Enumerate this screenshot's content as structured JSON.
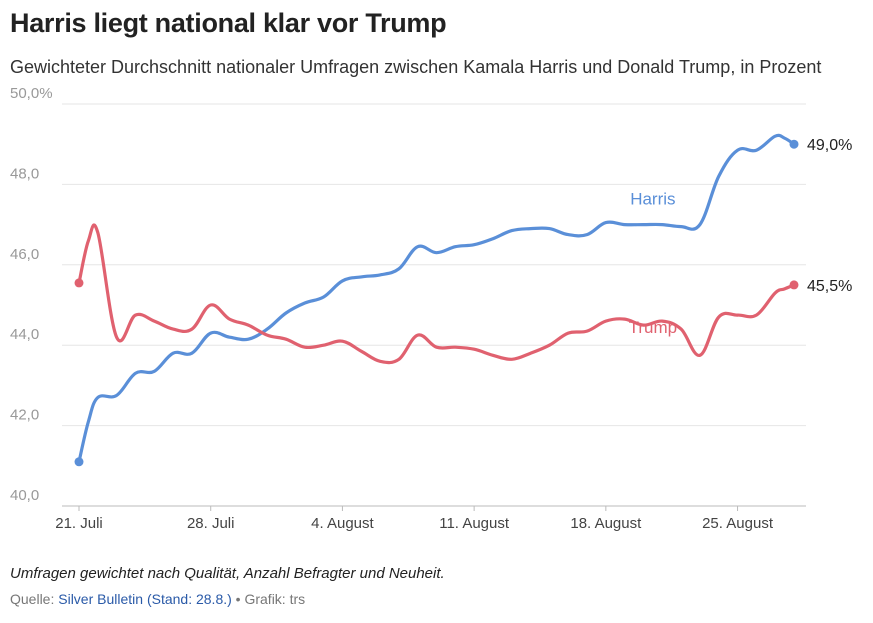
{
  "title": "Harris liegt national klar vor Trump",
  "subtitle": "Gewichteter Durchschnitt nationaler Umfragen zwischen Kamala Harris und Donald Trump, in Prozent",
  "note": "Umfragen gewichtet nach Qualität, Anzahl Befragter und Neuheit.",
  "source": {
    "prefix": "Quelle: ",
    "link_text": "Silver Bulletin (Stand: 28.8.)",
    "suffix": " • Grafik: trs"
  },
  "colors": {
    "harris": "#5a8fd8",
    "trump": "#e0616f",
    "grid": "#e6e6e6",
    "axis_text": "#999999"
  },
  "chart_data": {
    "type": "line",
    "title": "Harris liegt national klar vor Trump",
    "ylim": [
      40,
      50
    ],
    "yticks": [
      40,
      42,
      44,
      46,
      48,
      50
    ],
    "ytick_labels": [
      "40,0",
      "42,0",
      "44,0",
      "46,0",
      "48,0",
      "50,0%"
    ],
    "x_start_day": 0,
    "x_end_day": 38,
    "xticks": [
      {
        "day": 0,
        "label": "21. Juli"
      },
      {
        "day": 7,
        "label": "28. Juli"
      },
      {
        "day": 14,
        "label": "4. August"
      },
      {
        "day": 21,
        "label": "11. August"
      },
      {
        "day": 28,
        "label": "18. August"
      },
      {
        "day": 35,
        "label": "25. August"
      }
    ],
    "x_days": [
      0,
      0.5,
      1,
      2,
      3,
      4,
      5,
      6,
      7,
      8,
      9,
      10,
      11,
      12,
      13,
      14,
      15,
      16,
      17,
      18,
      19,
      20,
      21,
      22,
      23,
      24,
      25,
      26,
      27,
      28,
      29,
      30,
      31,
      32,
      33,
      34,
      35,
      36,
      37,
      37.5,
      38
    ],
    "series": [
      {
        "name": "Harris",
        "label": "Harris",
        "end_label": "49,0%",
        "values": [
          41.1,
          42.1,
          42.7,
          42.75,
          43.3,
          43.35,
          43.8,
          43.8,
          44.3,
          44.2,
          44.15,
          44.4,
          44.8,
          45.05,
          45.2,
          45.6,
          45.7,
          45.75,
          45.9,
          46.45,
          46.3,
          46.45,
          46.5,
          46.65,
          46.85,
          46.9,
          46.9,
          46.75,
          46.75,
          47.05,
          47.0,
          47.0,
          47.0,
          46.95,
          47.0,
          48.2,
          48.85,
          48.85,
          49.2,
          49.15,
          49.0
        ]
      },
      {
        "name": "Trump",
        "label": "Trump",
        "end_label": "45,5%",
        "values": [
          45.55,
          46.6,
          46.8,
          44.2,
          44.75,
          44.6,
          44.4,
          44.4,
          45.0,
          44.65,
          44.5,
          44.25,
          44.15,
          43.95,
          44.0,
          44.1,
          43.85,
          43.6,
          43.65,
          44.25,
          43.95,
          43.95,
          43.9,
          43.75,
          43.65,
          43.8,
          44.0,
          44.3,
          44.35,
          44.6,
          44.65,
          44.5,
          44.6,
          44.4,
          43.75,
          44.7,
          44.75,
          44.75,
          45.3,
          45.4,
          45.5
        ]
      }
    ]
  }
}
